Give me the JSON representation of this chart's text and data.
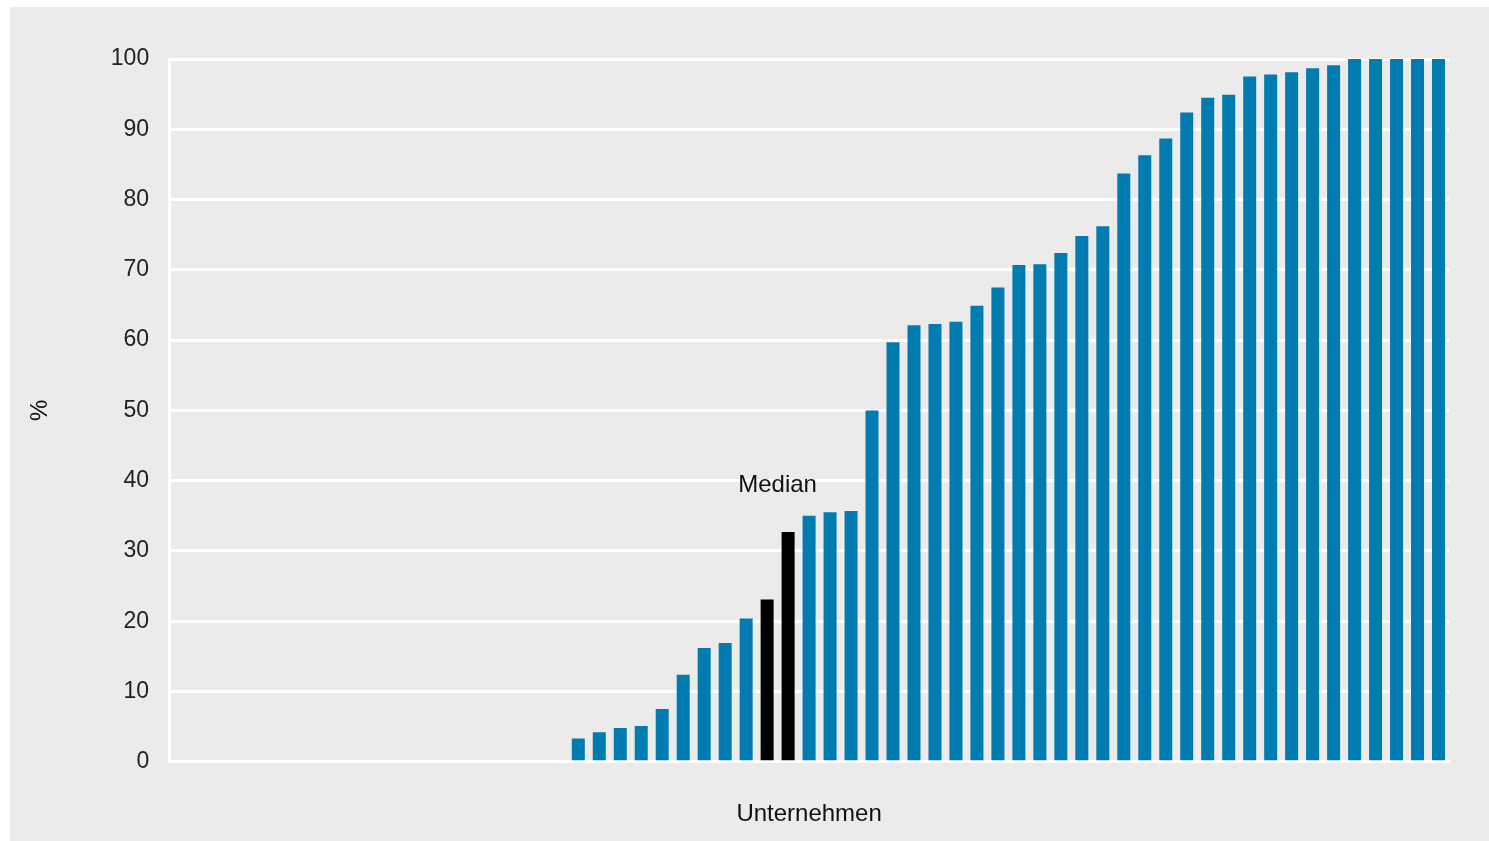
{
  "chart_data": {
    "type": "bar",
    "xlabel": "Unternehmen",
    "ylabel": "%",
    "categories": [
      null,
      null,
      null,
      null,
      null,
      null,
      null,
      null,
      null,
      null,
      null,
      null,
      null,
      null,
      null,
      null,
      null,
      null,
      null,
      null,
      null,
      null,
      null,
      null,
      null,
      null,
      null,
      null,
      null,
      null,
      null,
      null,
      null,
      null,
      null,
      null,
      null,
      null,
      null,
      null,
      null,
      null,
      null,
      null,
      null,
      null,
      null,
      null,
      null,
      null,
      null,
      null,
      null,
      null,
      null,
      null,
      null,
      null,
      null,
      null,
      null
    ],
    "values": [
      0,
      0,
      0,
      0,
      0,
      0,
      0,
      0,
      0,
      0,
      0,
      0,
      0,
      0,
      0,
      0,
      0,
      0,
      0,
      3.3,
      4.2,
      4.8,
      5.1,
      7.5,
      12.4,
      16.2,
      16.9,
      20.4,
      23.1,
      32.7,
      35.0,
      35.5,
      35.7,
      50,
      59.7,
      62.1,
      62.3,
      62.6,
      64.9,
      67.5,
      70.7,
      70.8,
      72.4,
      74.8,
      76.2,
      83.7,
      86.3,
      88.7,
      92.4,
      94.5,
      94.9,
      97.5,
      97.8,
      98.1,
      98.7,
      99.1,
      100,
      100,
      100,
      100,
      100
    ],
    "colors": [
      "#007cb0",
      "#007cb0",
      "#007cb0",
      "#007cb0",
      "#007cb0",
      "#007cb0",
      "#007cb0",
      "#007cb0",
      "#007cb0",
      "#007cb0",
      "#007cb0",
      "#007cb0",
      "#007cb0",
      "#007cb0",
      "#007cb0",
      "#007cb0",
      "#007cb0",
      "#007cb0",
      "#007cb0",
      "#007cb0",
      "#007cb0",
      "#007cb0",
      "#007cb0",
      "#007cb0",
      "#007cb0",
      "#007cb0",
      "#007cb0",
      "#007cb0",
      "#000000",
      "#000000",
      "#007cb0",
      "#007cb0",
      "#007cb0",
      "#007cb0",
      "#007cb0",
      "#007cb0",
      "#007cb0",
      "#007cb0",
      "#007cb0",
      "#007cb0",
      "#007cb0",
      "#007cb0",
      "#007cb0",
      "#007cb0",
      "#007cb0",
      "#007cb0",
      "#007cb0",
      "#007cb0",
      "#007cb0",
      "#007cb0",
      "#007cb0",
      "#007cb0",
      "#007cb0",
      "#007cb0",
      "#007cb0",
      "#007cb0",
      "#007cb0",
      "#007cb0",
      "#007cb0",
      "#007cb0",
      "#007cb0"
    ],
    "ylim": [
      0,
      100
    ],
    "yticks": [
      0,
      10,
      20,
      30,
      40,
      50,
      60,
      70,
      80,
      90,
      100
    ],
    "grid": "y",
    "legend": false,
    "annotations": [
      "Median"
    ]
  }
}
